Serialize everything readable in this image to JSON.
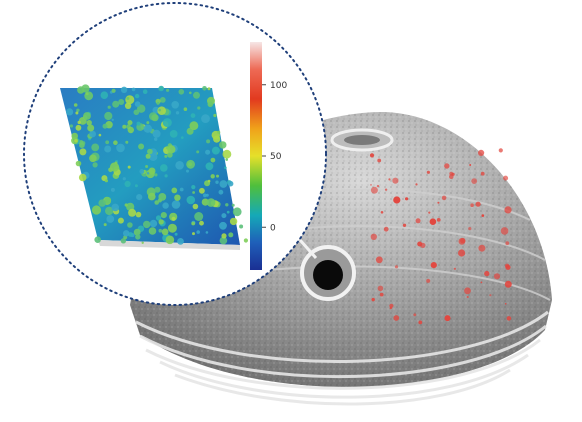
{
  "colorbar": {
    "ticks": [
      {
        "value": 100,
        "label": "100"
      },
      {
        "value": 50,
        "label": "50"
      },
      {
        "value": 0,
        "label": "0"
      }
    ],
    "range": [
      -30,
      130
    ],
    "colors": [
      "#f3d7d7",
      "#e23a1f",
      "#f0a21a",
      "#e6e02a",
      "#4fbf3c",
      "#15a9b7",
      "#1f5fb9",
      "#1a2f93"
    ]
  },
  "inset": {
    "description_colors": {
      "surface_low": "#1f58b4",
      "surface_mid": "#25a6c4",
      "surface_high": "#7fce5a",
      "callout_ring": "#1f3f7a"
    }
  },
  "dome": {
    "colors": {
      "body": "#8c8c8c",
      "dark": "#4b4b4b",
      "light": "#d6d6d6",
      "pore": "#e2463f"
    }
  }
}
